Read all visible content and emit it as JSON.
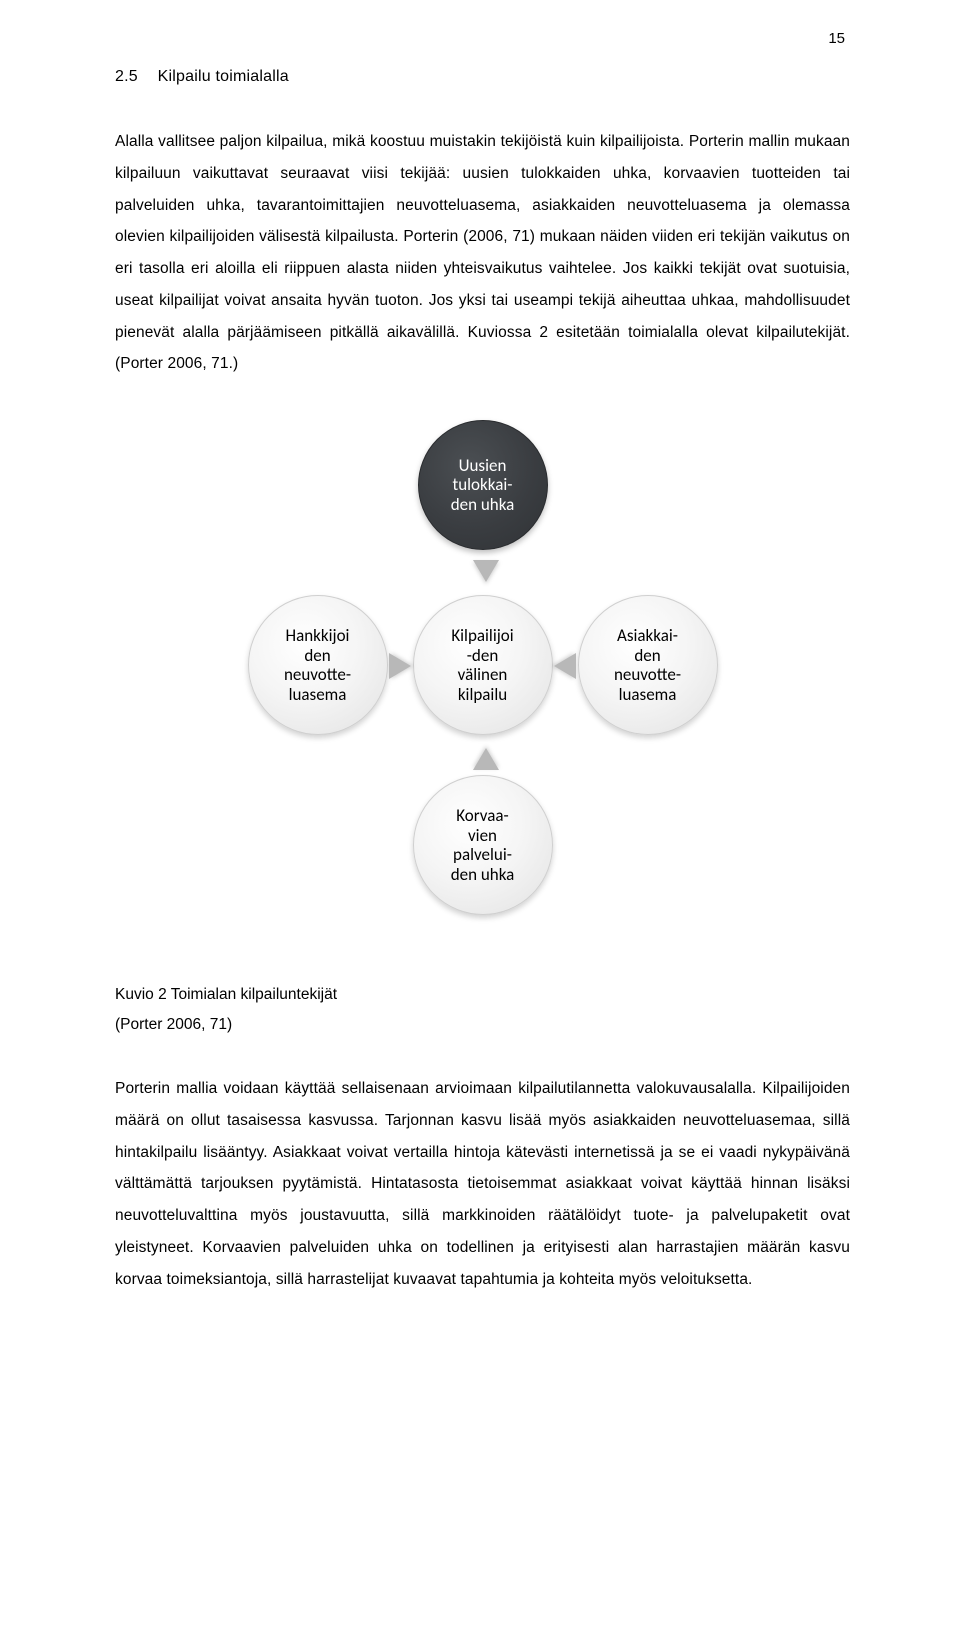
{
  "page": {
    "number": "15"
  },
  "heading": {
    "number": "2.5",
    "title": "Kilpailu toimialalla"
  },
  "paragraphs": {
    "p1": "Alalla vallitsee paljon kilpailua, mikä koostuu muistakin tekijöistä kuin kilpailijoista. Porterin mallin mukaan kilpailuun vaikuttavat seuraavat viisi tekijää: uusien tulokkaiden uhka, korvaa­vien tuotteiden tai palveluiden uhka, tavarantoimittajien neuvotteluasema, asiakkaiden neu­votteluasema ja olemassa olevien kilpailijoiden välisestä kilpailusta. Porterin (2006, 71) mu­kaan näiden viiden eri tekijän vaikutus on eri tasolla eri aloilla eli riippuen alasta niiden yh­teisvaikutus vaihtelee. Jos kaikki tekijät ovat suotuisia, useat kilpailijat voivat ansaita hyvän tuoton. Jos yksi tai useampi tekijä aiheuttaa uhkaa, mahdollisuudet pienevät alalla pärjäämi­seen pitkällä aikavälillä. Kuviossa 2 esitetään toimialalla olevat kilpailutekijät. (Porter 2006, 71.)",
    "p2": "Porterin mallia voidaan käyttää sellaisenaan arvioimaan kilpailutilannetta valokuvausalalla. Kilpailijoiden määrä on ollut tasaisessa kasvussa. Tarjonnan kasvu lisää myös asiakkaiden neu­votteluasemaa, sillä hintakilpailu lisääntyy. Asiakkaat voivat vertailla hintoja kätevästi inter­netissä ja se ei vaadi nykypäivänä välttämättä tarjouksen pyytämistä. Hintatasosta tietoi­semmat asiakkaat voivat käyttää hinnan lisäksi neuvotteluvalttina myös joustavuutta, sillä markkinoiden räätälöidyt tuote- ja palvelupaketit ovat yleistyneet. Korvaavien palveluiden uhka on todellinen ja erityisesti alan harrastajien määrän kasvu korvaa toimeksiantoja, sillä harrastelijat kuvaavat tapahtumia ja kohteita myös veloituksetta."
  },
  "diagram": {
    "type": "flowchart",
    "background_color": "#ffffff",
    "nodes": {
      "top": {
        "label": "Uusien\ntulokkai-\nden uhka",
        "fill": "#3a3d41",
        "text_color": "#ffffff"
      },
      "left": {
        "label": "Hankkijoi\nden\nneuvotte-\nluasema",
        "fill": "#efefef",
        "text_color": "#000000"
      },
      "center": {
        "label": "Kilpailijoi\n-den\nvälinen\nkilpailu",
        "fill": "#efefef",
        "text_color": "#000000"
      },
      "right": {
        "label": "Asiakkai-\nden\nneuvotte-\nluasema",
        "fill": "#efefef",
        "text_color": "#000000"
      },
      "bottom": {
        "label": "Korvaa-\nvien\npalvelui-\nden uhka",
        "fill": "#efefef",
        "text_color": "#000000"
      }
    },
    "arrow_color": "#b8b8b8",
    "font_size": 17
  },
  "caption": {
    "line1": "Kuvio 2 Toimialan kilpailuntekijät",
    "line2": "(Porter 2006, 71)"
  }
}
